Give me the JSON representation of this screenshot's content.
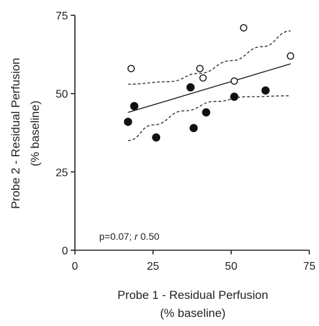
{
  "chart_data": {
    "type": "scatter",
    "xlabel": [
      "Probe 1 - Residual Perfusion",
      "(% baseline)"
    ],
    "ylabel": [
      "Probe 2 - Residual Perfusion",
      "(% baseline)"
    ],
    "xlim": [
      0,
      75
    ],
    "ylim": [
      0,
      75
    ],
    "xticks": [
      0,
      25,
      50,
      75
    ],
    "yticks": [
      0,
      25,
      50,
      75
    ],
    "grid": false,
    "annotation": {
      "p_text": "p=0.07; ",
      "r_symbol": "r",
      "r_value": " 0.50"
    },
    "series": [
      {
        "marker": "filled-circle",
        "color": "#111111",
        "points": [
          [
            17,
            41
          ],
          [
            19,
            46
          ],
          [
            26,
            36
          ],
          [
            37,
            52
          ],
          [
            38,
            39
          ],
          [
            42,
            44
          ],
          [
            51,
            49
          ],
          [
            61,
            51
          ]
        ]
      },
      {
        "marker": "open-circle",
        "color": "#111111",
        "points": [
          [
            18,
            58
          ],
          [
            40,
            58
          ],
          [
            41,
            55
          ],
          [
            51,
            54
          ],
          [
            54,
            71
          ],
          [
            69,
            62
          ]
        ]
      }
    ],
    "regression_line": {
      "x": [
        17,
        69
      ],
      "y": [
        44,
        59.5
      ]
    },
    "confidence_band": {
      "upper": {
        "x": [
          17,
          30,
          40,
          50,
          60,
          69
        ],
        "y": [
          53,
          53.8,
          56.5,
          60.5,
          65,
          70
        ]
      },
      "lower": {
        "x": [
          17,
          25,
          35,
          45,
          55,
          69
        ],
        "y": [
          35,
          40,
          44.5,
          47.5,
          49,
          49.3
        ]
      }
    }
  }
}
